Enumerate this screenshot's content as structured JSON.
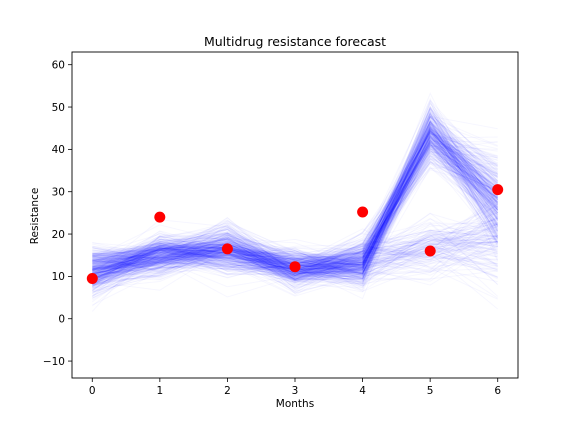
{
  "chart_data": {
    "type": "line",
    "title": "Multidrug resistance forecast",
    "xlabel": "Months",
    "ylabel": "Resistance",
    "x": [
      0,
      1,
      2,
      3,
      4,
      5,
      6
    ],
    "xlim": [
      -0.3,
      6.3
    ],
    "ylim": [
      -14,
      63
    ],
    "xticks": [
      0,
      1,
      2,
      3,
      4,
      5,
      6
    ],
    "yticks": [
      -10,
      0,
      10,
      20,
      30,
      40,
      50,
      60
    ],
    "grid": false,
    "observed": {
      "values": [
        9.5,
        24,
        16.5,
        12.3,
        25.2,
        16,
        30.5
      ],
      "color": "#ff0000"
    },
    "forecast_mean_paths": [
      {
        "values": [
          11,
          15,
          16.2,
          11.8,
          13,
          44,
          28
        ],
        "weight": 0.75
      },
      {
        "values": [
          11,
          15,
          16.2,
          11.8,
          13,
          16,
          18
        ],
        "weight": 0.25
      }
    ],
    "forecast_spread": [
      5,
      4,
      5,
      4,
      5,
      6,
      10
    ],
    "forecast_color": "#0000ff"
  }
}
